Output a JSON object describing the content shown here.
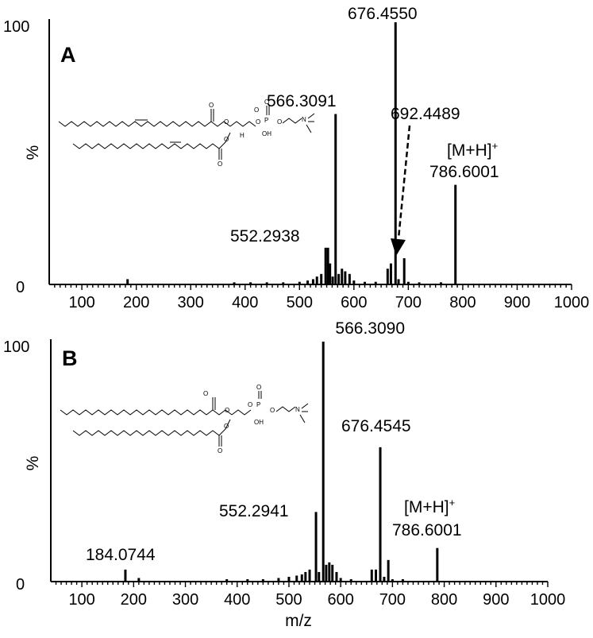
{
  "xlabel": "m/z",
  "chart_data": [
    {
      "type": "bar",
      "panel_label": "A",
      "ylabel": "%",
      "ytick_labels": [
        "0",
        "100"
      ],
      "xlim": [
        40,
        1000
      ],
      "ylim": [
        0,
        100
      ],
      "xticks": [
        100,
        200,
        300,
        400,
        500,
        600,
        700,
        800,
        900,
        1000
      ],
      "peaks": [
        {
          "x": 184,
          "y": 2
        },
        {
          "x": 380,
          "y": 0.8
        },
        {
          "x": 410,
          "y": 0.8
        },
        {
          "x": 440,
          "y": 0.8
        },
        {
          "x": 470,
          "y": 0.8
        },
        {
          "x": 500,
          "y": 1
        },
        {
          "x": 515,
          "y": 1.5
        },
        {
          "x": 525,
          "y": 2
        },
        {
          "x": 532,
          "y": 3
        },
        {
          "x": 540,
          "y": 4
        },
        {
          "x": 548,
          "y": 14
        },
        {
          "x": 552.2938,
          "y": 14
        },
        {
          "x": 556,
          "y": 8
        },
        {
          "x": 561,
          "y": 3
        },
        {
          "x": 566.3091,
          "y": 65
        },
        {
          "x": 572,
          "y": 4
        },
        {
          "x": 578,
          "y": 6
        },
        {
          "x": 584,
          "y": 5
        },
        {
          "x": 592,
          "y": 4
        },
        {
          "x": 600,
          "y": 1.5
        },
        {
          "x": 620,
          "y": 1
        },
        {
          "x": 640,
          "y": 1
        },
        {
          "x": 662,
          "y": 6
        },
        {
          "x": 668,
          "y": 8
        },
        {
          "x": 676.455,
          "y": 100
        },
        {
          "x": 682,
          "y": 2
        },
        {
          "x": 692.4489,
          "y": 10
        },
        {
          "x": 700,
          "y": 1
        },
        {
          "x": 720,
          "y": 0.8
        },
        {
          "x": 760,
          "y": 0.8
        },
        {
          "x": 786.6001,
          "y": 38
        }
      ],
      "annotations": [
        {
          "text": "676.4550",
          "x": 676.455
        },
        {
          "text": "566.3091",
          "x": 566.3091
        },
        {
          "text": "692.4489",
          "x": 692.4489
        },
        {
          "text": "552.2938",
          "x": 552.2938
        },
        {
          "text": "786.6001",
          "x": 786.6001
        }
      ],
      "ion_label": "[M+H]",
      "ion_charge": "+",
      "arrow_target": 692.4489
    },
    {
      "type": "bar",
      "panel_label": "B",
      "ylabel": "%",
      "ytick_labels": [
        "0",
        "100"
      ],
      "xlim": [
        40,
        1000
      ],
      "ylim": [
        0,
        100
      ],
      "xticks": [
        100,
        200,
        300,
        400,
        500,
        600,
        700,
        800,
        900,
        1000
      ],
      "peaks": [
        {
          "x": 184.0744,
          "y": 5
        },
        {
          "x": 210,
          "y": 1.5
        },
        {
          "x": 380,
          "y": 1
        },
        {
          "x": 420,
          "y": 1
        },
        {
          "x": 450,
          "y": 1
        },
        {
          "x": 480,
          "y": 1.5
        },
        {
          "x": 500,
          "y": 2
        },
        {
          "x": 515,
          "y": 2.5
        },
        {
          "x": 525,
          "y": 3
        },
        {
          "x": 532,
          "y": 4
        },
        {
          "x": 540,
          "y": 5
        },
        {
          "x": 552.2941,
          "y": 29
        },
        {
          "x": 558,
          "y": 4
        },
        {
          "x": 566.309,
          "y": 100
        },
        {
          "x": 572,
          "y": 7
        },
        {
          "x": 578,
          "y": 8
        },
        {
          "x": 584,
          "y": 7
        },
        {
          "x": 592,
          "y": 4
        },
        {
          "x": 600,
          "y": 1.5
        },
        {
          "x": 620,
          "y": 1
        },
        {
          "x": 660,
          "y": 5
        },
        {
          "x": 668,
          "y": 5
        },
        {
          "x": 676.4545,
          "y": 56
        },
        {
          "x": 684,
          "y": 2
        },
        {
          "x": 692,
          "y": 9
        },
        {
          "x": 700,
          "y": 1
        },
        {
          "x": 720,
          "y": 1
        },
        {
          "x": 786.6001,
          "y": 14
        }
      ],
      "annotations": [
        {
          "text": "566.3090",
          "x": 566.309
        },
        {
          "text": "676.4545",
          "x": 676.4545
        },
        {
          "text": "552.2941",
          "x": 552.2941
        },
        {
          "text": "786.6001",
          "x": 786.6001
        },
        {
          "text": "184.0744",
          "x": 184.0744
        }
      ],
      "ion_label": "[M+H]",
      "ion_charge": "+"
    }
  ],
  "structure_atoms": {
    "oxygen": "O",
    "phosphorus": "P",
    "hydroxyl": "OH",
    "hydrogen": "H",
    "nitrogen": "N"
  }
}
